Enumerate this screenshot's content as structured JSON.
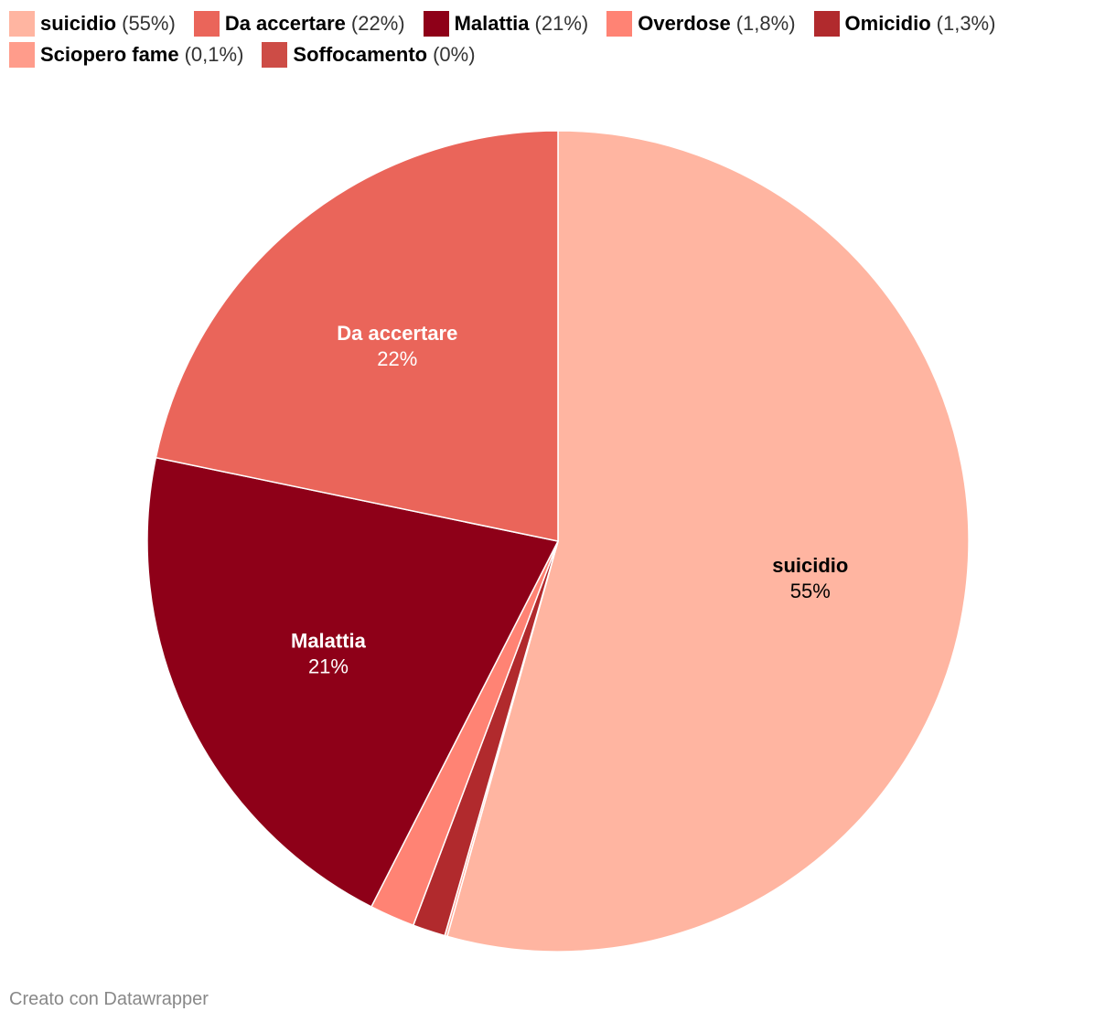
{
  "chart_data": {
    "type": "pie",
    "slices": [
      {
        "label": "suicidio",
        "display": "55%",
        "legend_display": "(55%)",
        "value": 55.0,
        "color": "#FFB5A1",
        "label_color": "#000000",
        "show_label": true
      },
      {
        "label": "Sciopero fame",
        "display": "0,1%",
        "legend_display": "(0,1%)",
        "value": 0.1,
        "color": "#FF9C8B",
        "label_color": "#000000",
        "show_label": false
      },
      {
        "label": "Soffocamento",
        "display": "0%",
        "legend_display": "(0%)",
        "value": 0.0,
        "color": "#CD4C46",
        "label_color": "#000000",
        "show_label": false
      },
      {
        "label": "Omicidio",
        "display": "1,3%",
        "legend_display": "(1,3%)",
        "value": 1.3,
        "color": "#B12A2D",
        "label_color": "#000000",
        "show_label": false
      },
      {
        "label": "Overdose",
        "display": "1,8%",
        "legend_display": "(1,8%)",
        "value": 1.8,
        "color": "#FF8374",
        "label_color": "#000000",
        "show_label": false
      },
      {
        "label": "Malattia",
        "display": "21%",
        "legend_display": "(21%)",
        "value": 21.0,
        "color": "#8E0018",
        "label_color": "#ffffff",
        "show_label": true
      },
      {
        "label": "Da accertare",
        "display": "22%",
        "legend_display": "(22%)",
        "value": 22.0,
        "color": "#EA655A",
        "label_color": "#ffffff",
        "show_label": true
      }
    ],
    "legend": [
      {
        "label": "suicidio",
        "display": "(55%)",
        "color": "#FFB5A1"
      },
      {
        "label": "Da accertare",
        "display": "(22%)",
        "color": "#EA655A"
      },
      {
        "label": "Malattia",
        "display": "(21%)",
        "color": "#8E0018"
      },
      {
        "label": "Overdose",
        "display": "(1,8%)",
        "color": "#FF8374"
      },
      {
        "label": "Omicidio",
        "display": "(1,3%)",
        "color": "#B12A2D"
      },
      {
        "label": "Sciopero fame",
        "display": "(0,1%)",
        "color": "#FF9C8B"
      },
      {
        "label": "Soffocamento",
        "display": "(0%)",
        "color": "#CD4C46"
      }
    ],
    "legend_placement": "top-left"
  },
  "footer": {
    "credit": "Creato con Datawrapper"
  }
}
